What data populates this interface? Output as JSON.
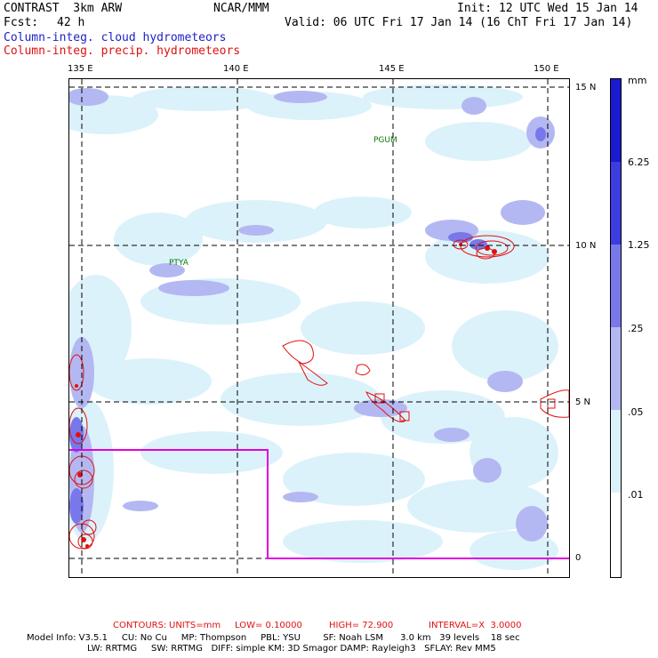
{
  "header": {
    "model_name": "CONTRAST  3km ARW",
    "org": "NCAR/MMM",
    "init": "Init: 12 UTC Wed 15 Jan 14",
    "fcst_label": "Fcst:",
    "fcst_value": "42 h",
    "valid": "Valid: 06 UTC Fri 17 Jan 14 (16 ChT Fri 17 Jan 14)",
    "field1": "Column-integ. cloud hydrometeors",
    "field2": "Column-integ. precip. hydrometeors"
  },
  "axes": {
    "lon_labels": [
      "135 E",
      "140 E",
      "145 E",
      "150 E"
    ],
    "lat_labels": [
      "15 N",
      "10 N",
      "5 N",
      "0"
    ]
  },
  "stations": [
    "PGUM",
    "PTYA"
  ],
  "legend": {
    "unit": "mm",
    "levels": [
      "6.25",
      "1.25",
      ".25",
      ".05",
      ".01"
    ],
    "colors": [
      "#1a1ad0",
      "#3c3ce0",
      "#7878ea",
      "#b4b8f2",
      "#dcf2fa",
      "#ffffff"
    ]
  },
  "contour_info": {
    "label": "CONTOURS:",
    "units": "UNITS=mm",
    "low": "LOW= 0.10000",
    "high": "HIGH= 72.900",
    "interval": "INTERVAL=X  3.0000"
  },
  "model_info": {
    "line1": "Model Info: V3.5.1     CU: No Cu     MP: Thompson     PBL: YSU        SF: Noah LSM      3.0 km   39 levels    18 sec",
    "line2": "LW: RRTMG     SW: RRTMG   DIFF: simple KM: 3D Smagor DAMP: Rayleigh3   SFLAY: Rev MM5"
  }
}
